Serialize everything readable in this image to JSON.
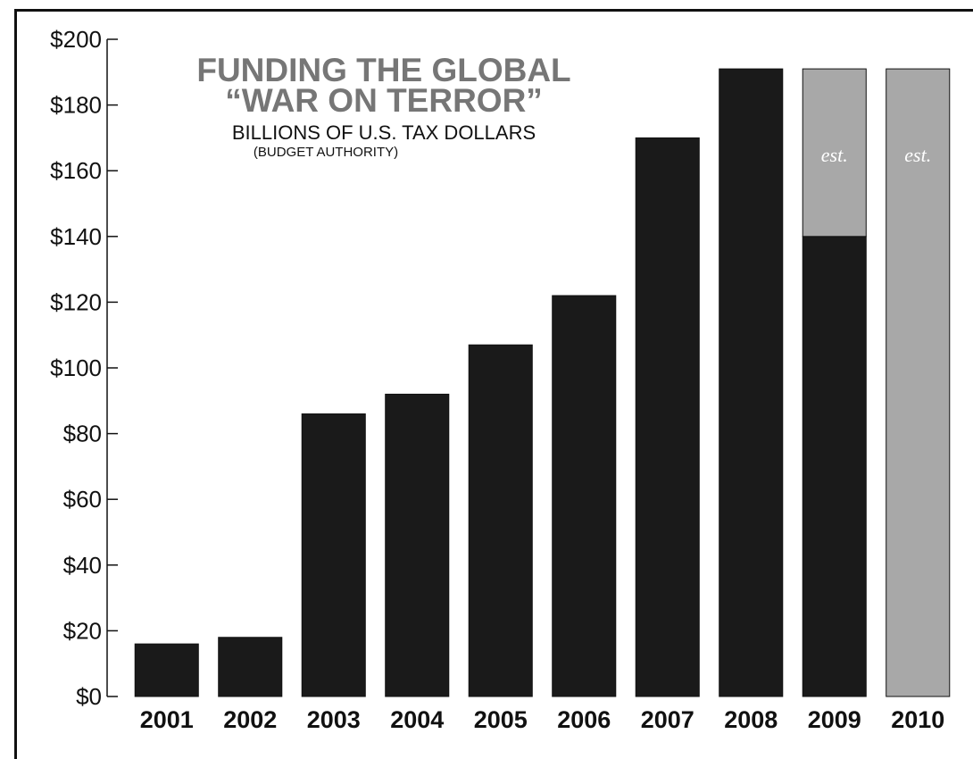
{
  "chart_data": {
    "type": "bar",
    "title": [
      "FUNDING THE GLOBAL",
      "“WAR ON TERROR”"
    ],
    "subtitle": "BILLIONS OF U.S. TAX DOLLARS",
    "note": "(BUDGET AUTHORITY)",
    "categories": [
      "2001",
      "2002",
      "2003",
      "2004",
      "2005",
      "2006",
      "2007",
      "2008",
      "2009",
      "2010"
    ],
    "series": [
      {
        "values": [
          16,
          18,
          86,
          92,
          107,
          122,
          170,
          191,
          140,
          0
        ],
        "color": "#1a1a1a"
      },
      {
        "values": [
          0,
          0,
          0,
          0,
          0,
          0,
          0,
          0,
          51,
          191
        ],
        "color": "#a8a8a8"
      }
    ],
    "bar_annotations": [
      "",
      "",
      "",
      "",
      "",
      "",
      "",
      "",
      "est.",
      "est."
    ],
    "ylim": [
      0,
      200
    ],
    "yticks": [
      0,
      20,
      40,
      60,
      80,
      100,
      120,
      140,
      160,
      180,
      200
    ],
    "ytick_labels": [
      "$0",
      "$20",
      "$40",
      "$60",
      "$80",
      "$100",
      "$120",
      "$140",
      "$160",
      "$180",
      "$200"
    ],
    "grid": false,
    "legend": "none"
  }
}
